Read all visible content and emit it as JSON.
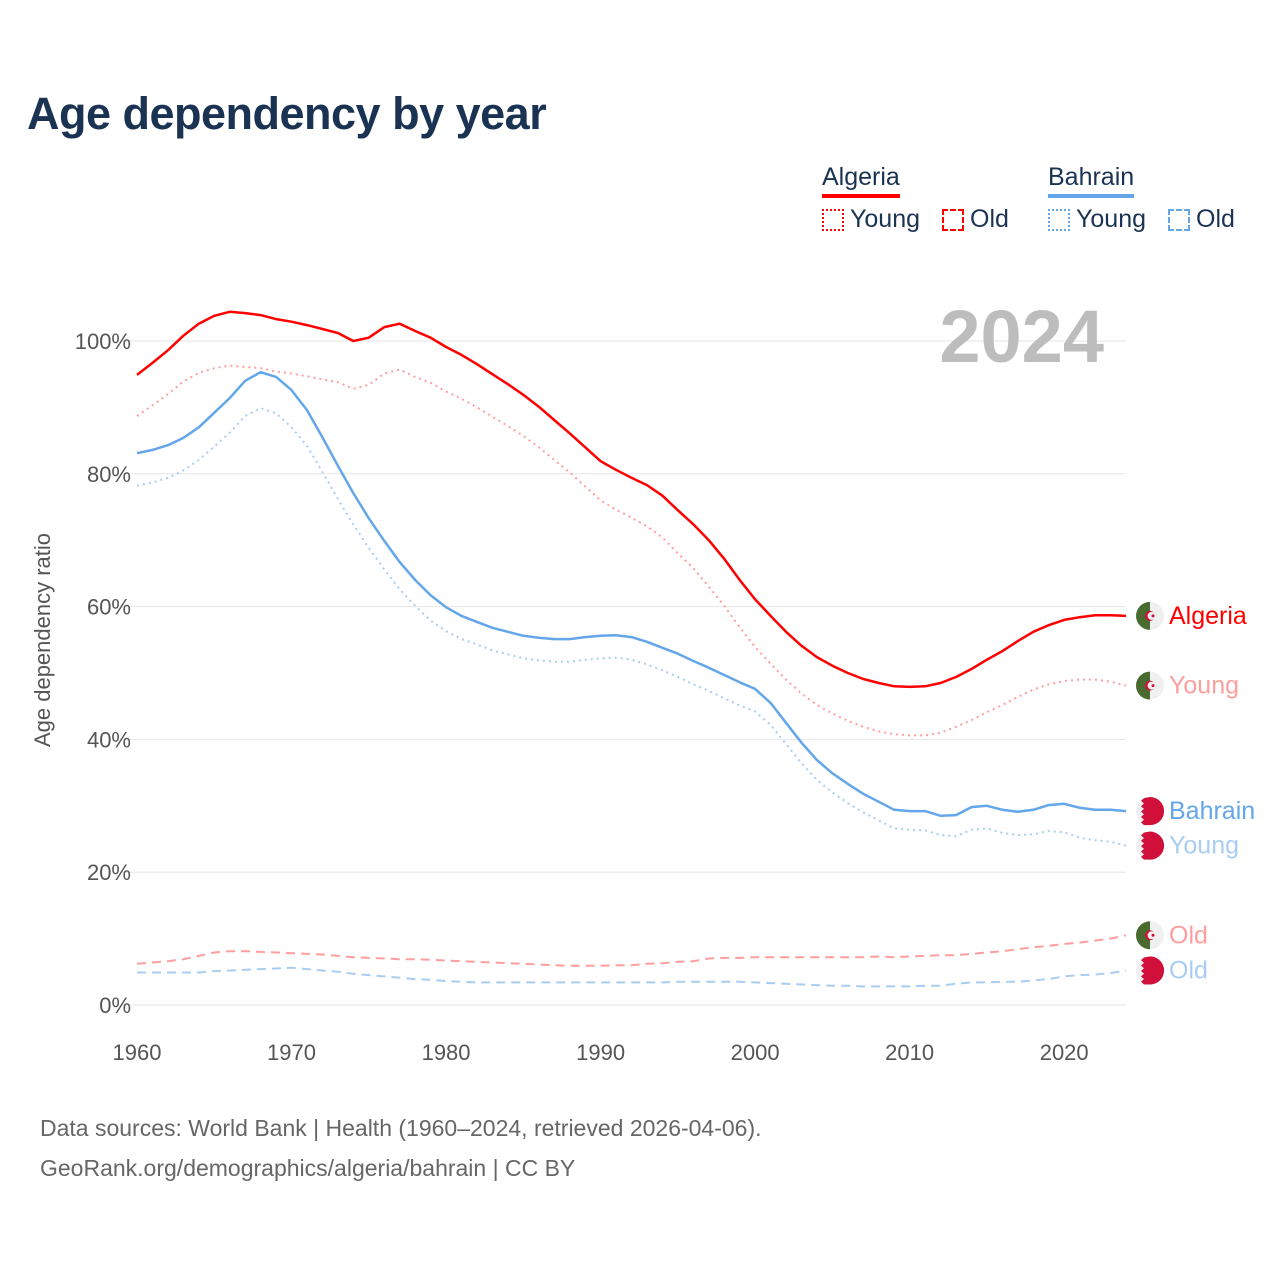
{
  "title": "Age dependency by year",
  "year_watermark": "2024",
  "legend": {
    "groups": [
      {
        "country": "Algeria",
        "color": "#ff0000",
        "items": [
          {
            "label": "Young",
            "style": "dotted"
          },
          {
            "label": "Old",
            "style": "dashed"
          }
        ]
      },
      {
        "country": "Bahrain",
        "color": "#63a6e9",
        "items": [
          {
            "label": "Young",
            "style": "dotted"
          },
          {
            "label": "Old",
            "style": "dashed"
          }
        ]
      }
    ]
  },
  "source": {
    "line1": "Data sources: World Bank | Health (1960–2024, retrieved 2026-04-06).",
    "line2": "GeoRank.org/demographics/algeria/bahrain | CC BY"
  },
  "chart_data": {
    "type": "line",
    "title": "Age dependency by year",
    "xlabel": "",
    "ylabel": "Age dependency ratio",
    "x_start": 1960,
    "x_end": 2024,
    "xlim": [
      1960,
      2024
    ],
    "ylim": [
      0,
      105
    ],
    "x_ticks": [
      "1960",
      "1970",
      "1980",
      "1990",
      "2000",
      "2010",
      "2020"
    ],
    "y_ticks": [
      "0%",
      "20%",
      "40%",
      "60%",
      "80%",
      "100%"
    ],
    "grid": true,
    "series": [
      {
        "name": "Algeria",
        "end_label": "Algeria",
        "country": "algeria",
        "color": "#ff0000",
        "dash": "solid",
        "values": [
          94.9,
          96.7,
          98.6,
          100.8,
          102.6,
          103.8,
          104.4,
          104.2,
          103.9,
          103.3,
          102.9,
          102.4,
          101.8,
          101.2,
          100.0,
          100.5,
          102.1,
          102.6,
          101.5,
          100.5,
          99.1,
          97.9,
          96.5,
          95.0,
          93.5,
          91.9,
          90.1,
          88.1,
          86.1,
          84.0,
          81.9,
          80.6,
          79.4,
          78.3,
          76.7,
          74.5,
          72.4,
          70.0,
          67.2,
          64.0,
          61.1,
          58.6,
          56.2,
          54.1,
          52.4,
          51.1,
          50.0,
          49.1,
          48.5,
          48.0,
          47.9,
          48.0,
          48.5,
          49.4,
          50.6,
          52.0,
          53.3,
          54.8,
          56.2,
          57.2,
          58.0,
          58.4,
          58.7,
          58.7,
          58.6
        ]
      },
      {
        "name": "Algeria Young",
        "end_label": "Young",
        "country": "algeria",
        "color": "#ff9e9e",
        "dash": "dotted",
        "values": [
          88.7,
          90.3,
          92.0,
          93.9,
          95.2,
          95.9,
          96.3,
          96.1,
          95.9,
          95.4,
          95.1,
          94.7,
          94.2,
          93.8,
          92.8,
          93.4,
          95.1,
          95.7,
          94.6,
          93.7,
          92.4,
          91.3,
          90.0,
          88.6,
          87.2,
          85.7,
          84.0,
          82.1,
          80.2,
          78.1,
          76.0,
          74.6,
          73.4,
          72.1,
          70.4,
          68.0,
          65.8,
          63.0,
          60.1,
          56.9,
          53.9,
          51.4,
          49.0,
          46.9,
          45.2,
          43.9,
          42.8,
          41.9,
          41.2,
          40.8,
          40.6,
          40.6,
          41.0,
          41.9,
          42.9,
          44.1,
          45.2,
          46.4,
          47.5,
          48.3,
          48.8,
          49.0,
          49.0,
          48.7,
          48.1
        ]
      },
      {
        "name": "Algeria Old",
        "end_label": "Old",
        "country": "algeria",
        "color": "#ff9e9e",
        "dash": "dashed",
        "values": [
          6.2,
          6.4,
          6.6,
          6.9,
          7.4,
          7.9,
          8.1,
          8.1,
          8.0,
          7.9,
          7.8,
          7.7,
          7.6,
          7.4,
          7.2,
          7.1,
          7.0,
          6.9,
          6.9,
          6.8,
          6.7,
          6.6,
          6.5,
          6.4,
          6.3,
          6.2,
          6.1,
          6.0,
          5.9,
          5.9,
          5.9,
          6.0,
          6.0,
          6.2,
          6.3,
          6.5,
          6.6,
          7.0,
          7.1,
          7.1,
          7.2,
          7.2,
          7.2,
          7.2,
          7.2,
          7.2,
          7.2,
          7.2,
          7.3,
          7.2,
          7.3,
          7.4,
          7.5,
          7.5,
          7.7,
          7.9,
          8.1,
          8.4,
          8.7,
          8.9,
          9.2,
          9.4,
          9.7,
          10.0,
          10.5
        ]
      },
      {
        "name": "Bahrain",
        "end_label": "Bahrain",
        "country": "bahrain",
        "color": "#63a6e9",
        "dash": "solid",
        "values": [
          83.1,
          83.6,
          84.3,
          85.4,
          87.0,
          89.2,
          91.4,
          94.0,
          95.3,
          94.6,
          92.6,
          89.6,
          85.5,
          81.2,
          77.1,
          73.3,
          69.9,
          66.7,
          64.0,
          61.7,
          59.9,
          58.6,
          57.7,
          56.8,
          56.2,
          55.6,
          55.3,
          55.1,
          55.1,
          55.4,
          55.6,
          55.7,
          55.4,
          54.7,
          53.8,
          52.9,
          51.8,
          50.8,
          49.7,
          48.6,
          47.6,
          45.5,
          42.5,
          39.5,
          36.9,
          34.9,
          33.3,
          31.8,
          30.6,
          29.4,
          29.2,
          29.2,
          28.5,
          28.6,
          29.8,
          30.0,
          29.4,
          29.1,
          29.4,
          30.1,
          30.3,
          29.7,
          29.4,
          29.4,
          29.2
        ]
      },
      {
        "name": "Bahrain Young",
        "end_label": "Young",
        "country": "bahrain",
        "color": "#a9cdf2",
        "dash": "dotted",
        "values": [
          78.2,
          78.7,
          79.4,
          80.5,
          82.1,
          84.1,
          86.2,
          88.7,
          89.9,
          89.1,
          87.0,
          84.2,
          80.3,
          76.2,
          72.4,
          68.8,
          65.6,
          62.6,
          60.1,
          57.9,
          56.3,
          55.1,
          54.3,
          53.4,
          52.8,
          52.2,
          51.9,
          51.7,
          51.7,
          52.0,
          52.2,
          52.3,
          52.0,
          51.3,
          50.4,
          49.4,
          48.3,
          47.3,
          46.2,
          45.1,
          44.2,
          42.2,
          39.3,
          36.4,
          33.9,
          32.0,
          30.4,
          29.0,
          27.8,
          26.6,
          26.4,
          26.3,
          25.6,
          25.4,
          26.4,
          26.6,
          25.9,
          25.6,
          25.7,
          26.2,
          26.0,
          25.2,
          24.8,
          24.6,
          24.0
        ]
      },
      {
        "name": "Bahrain Old",
        "end_label": "Old",
        "country": "bahrain",
        "color": "#a9cdf2",
        "dash": "dashed",
        "values": [
          4.9,
          4.9,
          4.9,
          4.9,
          4.9,
          5.1,
          5.2,
          5.3,
          5.4,
          5.5,
          5.6,
          5.4,
          5.2,
          5.0,
          4.7,
          4.5,
          4.3,
          4.1,
          3.9,
          3.8,
          3.6,
          3.5,
          3.4,
          3.4,
          3.4,
          3.4,
          3.4,
          3.4,
          3.4,
          3.4,
          3.4,
          3.4,
          3.4,
          3.4,
          3.4,
          3.5,
          3.5,
          3.5,
          3.5,
          3.5,
          3.4,
          3.3,
          3.2,
          3.1,
          3.0,
          2.9,
          2.9,
          2.8,
          2.8,
          2.8,
          2.8,
          2.9,
          2.9,
          3.2,
          3.4,
          3.4,
          3.5,
          3.5,
          3.7,
          3.9,
          4.3,
          4.5,
          4.6,
          4.8,
          5.2
        ]
      }
    ]
  }
}
